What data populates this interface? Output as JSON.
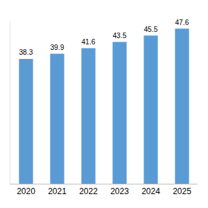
{
  "chart_data": {
    "type": "bar",
    "categories": [
      "2020",
      "2021",
      "2022",
      "2023",
      "2024",
      "2025"
    ],
    "values": [
      38.3,
      39.9,
      41.6,
      43.5,
      45.5,
      47.6
    ],
    "color": "#5b9bd5",
    "ylim": [
      0,
      50
    ],
    "grid": false,
    "data_labels": true,
    "tick_labels": "x"
  }
}
